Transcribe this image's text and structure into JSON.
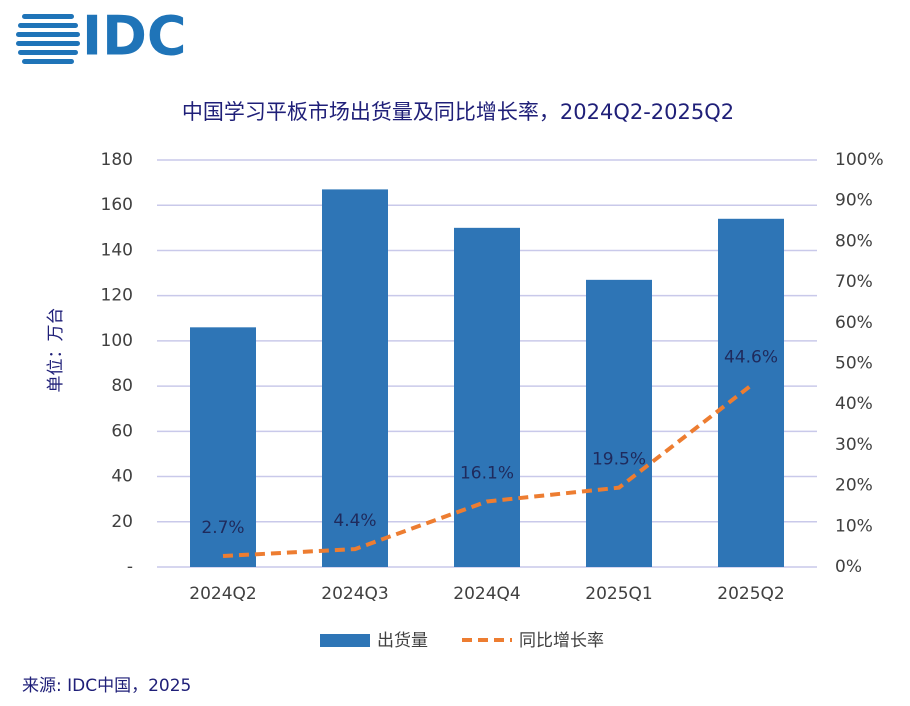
{
  "logo": "IDC",
  "chart_data": {
    "type": "combo",
    "title": "中国学习平板市场出货量及同比增长率，2024Q2-2025Q2",
    "ylabel": "单位：万台",
    "source": "来源: IDC中国，2025",
    "categories": [
      "2024Q2",
      "2024Q3",
      "2024Q4",
      "2025Q1",
      "2025Q2"
    ],
    "series": [
      {
        "name": "出货量",
        "type": "bar",
        "color": "#2e75b6",
        "values": [
          106,
          167,
          150,
          127,
          154
        ]
      },
      {
        "name": "同比增长率",
        "type": "line",
        "axis": "y2",
        "color": "#ed7d31",
        "values": [
          2.7,
          4.4,
          16.1,
          19.5,
          44.6
        ],
        "value_labels": [
          "2.7%",
          "4.4%",
          "16.1%",
          "19.5%",
          "44.6%"
        ]
      }
    ],
    "ylim": [
      0,
      180
    ],
    "yticks": [
      {
        "value": 0,
        "label": "-"
      },
      20,
      40,
      60,
      80,
      100,
      120,
      140,
      160,
      180
    ],
    "y2lim": [
      0,
      100
    ],
    "y2ticks": [
      {
        "value": 0,
        "label": "0%"
      },
      {
        "value": 10,
        "label": "10%"
      },
      {
        "value": 20,
        "label": "20%"
      },
      {
        "value": 30,
        "label": "30%"
      },
      {
        "value": 40,
        "label": "40%"
      },
      {
        "value": 50,
        "label": "50%"
      },
      {
        "value": 60,
        "label": "60%"
      },
      {
        "value": 70,
        "label": "70%"
      },
      {
        "value": 80,
        "label": "80%"
      },
      {
        "value": 90,
        "label": "90%"
      },
      {
        "value": 100,
        "label": "100%"
      }
    ],
    "grid": true
  }
}
